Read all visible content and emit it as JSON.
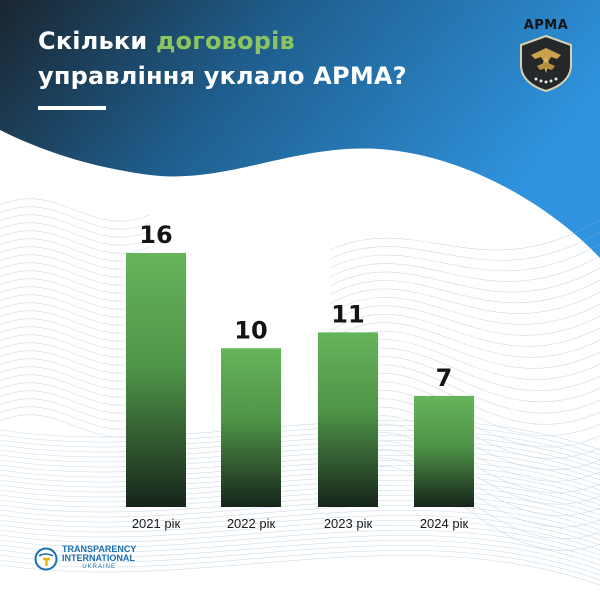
{
  "header": {
    "title_part1": "Скільки ",
    "title_accent": "договорів",
    "title_line2": "управління уклало АРМА?",
    "accent_color": "#8cc55f"
  },
  "logo": {
    "text": "АРМА"
  },
  "footer": {
    "org_line1": "TRANSPARENCY",
    "org_line2": "INTERNATIONAL",
    "org_line3": "UKRAINE"
  },
  "colors": {
    "bar_top": "#66b45a",
    "bar_bottom": "#16251a",
    "header_dark": "#1c2b35",
    "header_blue": "#2a8bd6"
  },
  "chart_data": {
    "type": "bar",
    "categories": [
      "2021 рік",
      "2022 рік",
      "2023 рік",
      "2024 рік"
    ],
    "values": [
      16,
      10,
      11,
      7
    ],
    "value_labels": [
      "16",
      "10",
      "11",
      "7"
    ],
    "title": "",
    "xlabel": "",
    "ylabel": "",
    "ylim": [
      0,
      16
    ],
    "grid": false,
    "legend": "none"
  }
}
